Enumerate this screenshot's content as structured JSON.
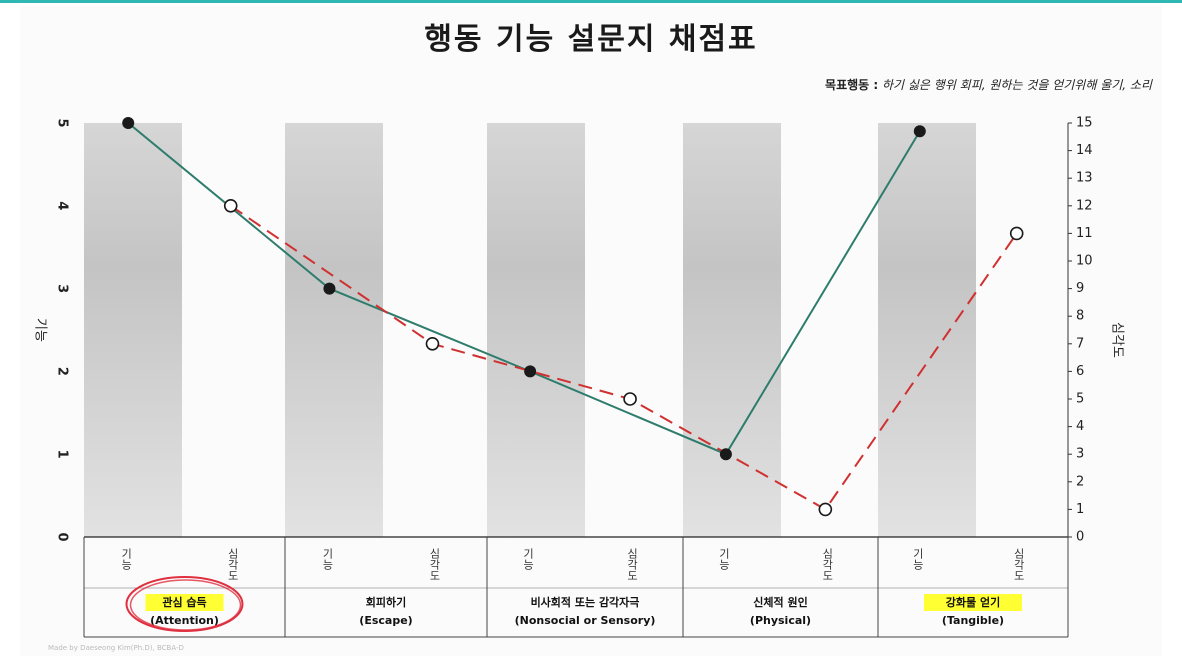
{
  "title": "행동 기능 설문지 채점표",
  "goal": {
    "label": "목표행동 :",
    "text": "하기 싫은 행위 회피, 원하는 것을 얻기위해 울기, 소리"
  },
  "footer": "Made by Daeseong Kim(Ph.D), BCBA-D",
  "chart_data": {
    "type": "line",
    "left_axis": {
      "label": "기능",
      "range": [
        0,
        5
      ],
      "ticks": [
        "0",
        "1",
        "2",
        "3",
        "4",
        "5"
      ]
    },
    "right_axis": {
      "label": "심각도",
      "range": [
        0,
        15
      ],
      "ticks": [
        "0",
        "1",
        "2",
        "3",
        "4",
        "5",
        "6",
        "7",
        "8",
        "9",
        "10",
        "11",
        "12",
        "13",
        "14",
        "15"
      ]
    },
    "sub_labels": [
      "기능",
      "심각도"
    ],
    "categories": [
      {
        "name": "관심 습득",
        "english": "(Attention)",
        "highlight": true,
        "circled": true
      },
      {
        "name": "회피하기",
        "english": "(Escape)",
        "highlight": false,
        "circled": false
      },
      {
        "name": "비사회적 또는 감각자극",
        "english": "(Nonsocial or Sensory)",
        "highlight": false,
        "circled": false
      },
      {
        "name": "신체적 원인",
        "english": "(Physical)",
        "highlight": false,
        "circled": false
      },
      {
        "name": "강화물 얻기",
        "english": "(Tangible)",
        "highlight": true,
        "circled": false
      }
    ],
    "series": [
      {
        "axis": "left",
        "style": "solid",
        "color": "#2e7d6c",
        "values": [
          5,
          3,
          2,
          1,
          4.9
        ]
      },
      {
        "axis": "right",
        "style": "dashed",
        "color": "#d03030",
        "values": [
          12,
          7,
          5,
          1,
          11
        ]
      }
    ],
    "highlight_color": "#ffff33",
    "circle_color": "#e03040",
    "grid": false
  }
}
